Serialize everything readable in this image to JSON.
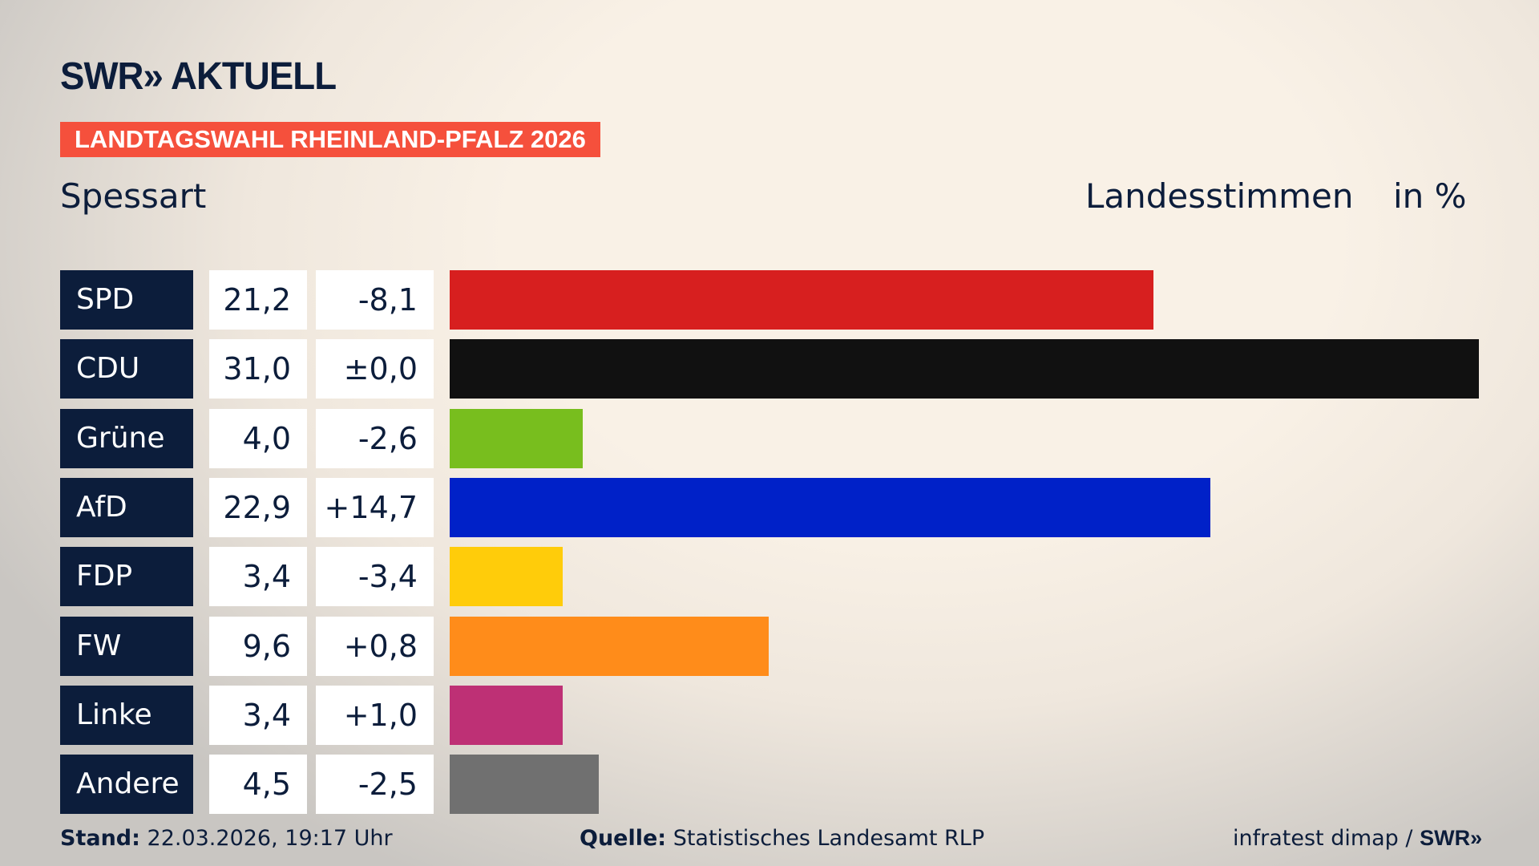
{
  "header": {
    "logo": "SWR» AKTUELL",
    "banner": "LANDTAGSWAHL RHEINLAND-PFALZ 2026",
    "place": "Spessart",
    "vote_type": "Landesstimmen",
    "unit": "in %"
  },
  "chart_data": {
    "type": "bar",
    "orientation": "horizontal",
    "xlim": [
      0,
      31
    ],
    "grid": false,
    "categories": [
      "SPD",
      "CDU",
      "Grüne",
      "AfD",
      "FDP",
      "FW",
      "Linke",
      "Andere"
    ],
    "values": [
      21.2,
      31.0,
      4.0,
      22.9,
      3.4,
      9.6,
      3.4,
      4.5
    ],
    "value_labels": [
      "21,2",
      "31,0",
      "4,0",
      "22,9",
      "3,4",
      "9,6",
      "3,4",
      "4,5"
    ],
    "diff_labels": [
      "-8,1",
      "±0,0",
      "-2,6",
      "+14,7",
      "-3,4",
      "+0,8",
      "+1,0",
      "-2,5"
    ],
    "colors": [
      "#d71f1f",
      "#111111",
      "#78be1e",
      "#0021c8",
      "#ffcc0a",
      "#ff8c1a",
      "#be3075",
      "#707070"
    ]
  },
  "footer": {
    "stand_label": "Stand:",
    "stand_value": "22.03.2026, 19:17 Uhr",
    "source_label": "Quelle:",
    "source_value": "Statistisches Landesamt RLP",
    "credit": "infratest dimap / ",
    "credit_logo": "SWR»"
  },
  "colors": {
    "navy": "#0c1d3b",
    "banner": "#f5503c"
  }
}
